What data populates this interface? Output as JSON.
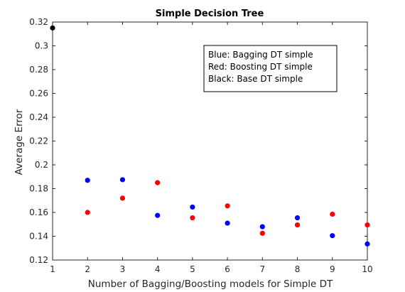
{
  "chart_data": {
    "type": "scatter",
    "title": "Simple Decision Tree",
    "xlabel": "Number of Bagging/Boosting models for Simple DT",
    "ylabel": "Average Error",
    "xlim": [
      1,
      10
    ],
    "ylim": [
      0.12,
      0.32
    ],
    "xticks": [
      "1",
      "2",
      "3",
      "4",
      "5",
      "6",
      "7",
      "8",
      "9",
      "10"
    ],
    "yticks": [
      "0.12",
      "0.14",
      "0.16",
      "0.18",
      "0.2",
      "0.22",
      "0.24",
      "0.26",
      "0.28",
      "0.3",
      "0.32"
    ],
    "grid": false,
    "legend_position": "top-right",
    "legend": [
      "Blue: Bagging DT simple",
      "Red: Boosting DT simple",
      "Black: Base DT simple"
    ],
    "series": [
      {
        "color": "#0000ff",
        "x": [
          2,
          3,
          4,
          5,
          6,
          7,
          8,
          9,
          10
        ],
        "y": [
          0.187,
          0.1875,
          0.1575,
          0.1645,
          0.151,
          0.148,
          0.1555,
          0.1405,
          0.1335
        ]
      },
      {
        "color": "#ff0000",
        "x": [
          2,
          3,
          4,
          5,
          6,
          7,
          8,
          9,
          10
        ],
        "y": [
          0.16,
          0.172,
          0.185,
          0.1555,
          0.1655,
          0.1425,
          0.1495,
          0.1585,
          0.1495
        ]
      },
      {
        "color": "#000000",
        "x": [
          1
        ],
        "y": [
          0.315
        ]
      }
    ]
  }
}
